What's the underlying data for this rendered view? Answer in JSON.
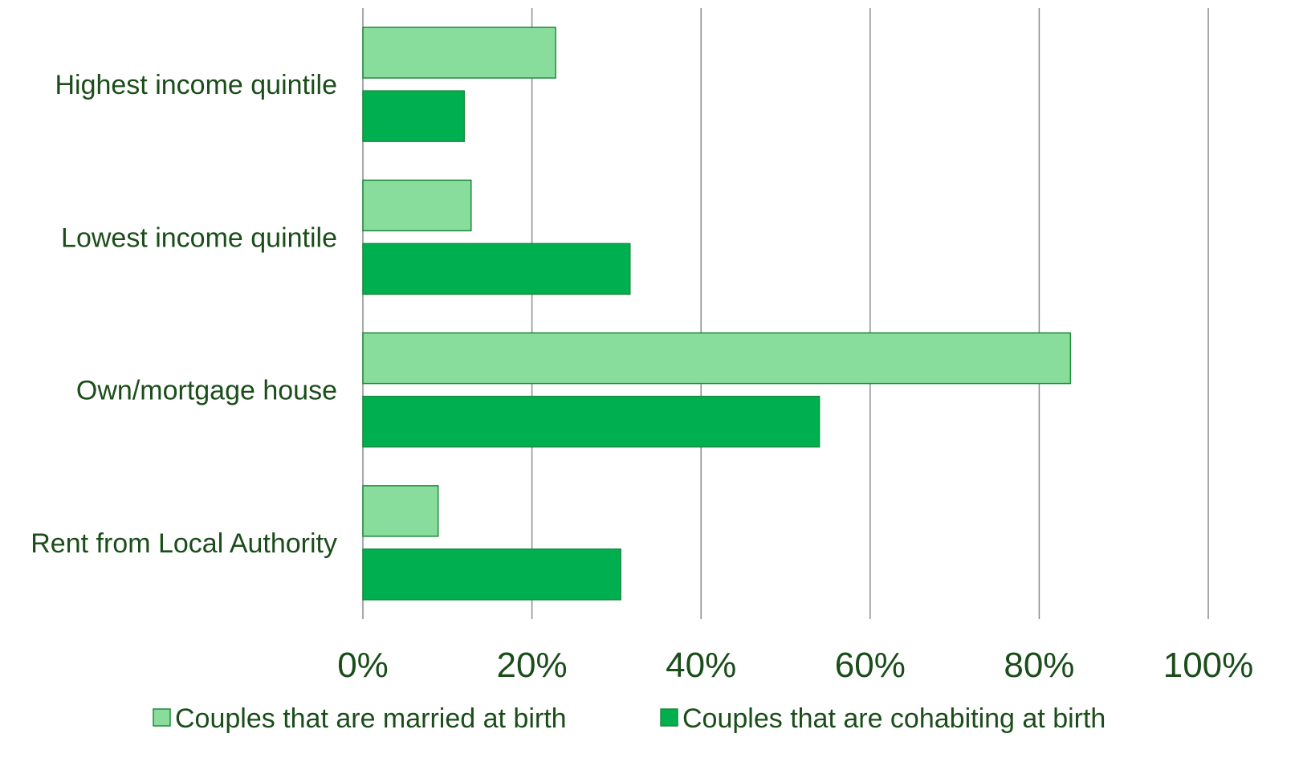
{
  "chart_data": {
    "type": "bar",
    "orientation": "horizontal",
    "title": "",
    "xlabel": "",
    "ylabel": "",
    "categories": [
      "Highest income quintile",
      "Lowest income quintile",
      "Own/mortgage house",
      "Rent from Local Authority"
    ],
    "series": [
      {
        "name": "Couples that are married at birth",
        "values": [
          22.8,
          12.8,
          83.7,
          8.9
        ],
        "color": "#88dc9c"
      },
      {
        "name": "Couples that are cohabiting at birth",
        "values": [
          12.0,
          31.6,
          54.0,
          30.5
        ],
        "color": "#00b050"
      }
    ],
    "xlim": [
      0,
      100
    ],
    "xticks": [
      "0%",
      "20%",
      "40%",
      "60%",
      "80%",
      "100%"
    ],
    "grid": true,
    "legend_position": "bottom"
  }
}
